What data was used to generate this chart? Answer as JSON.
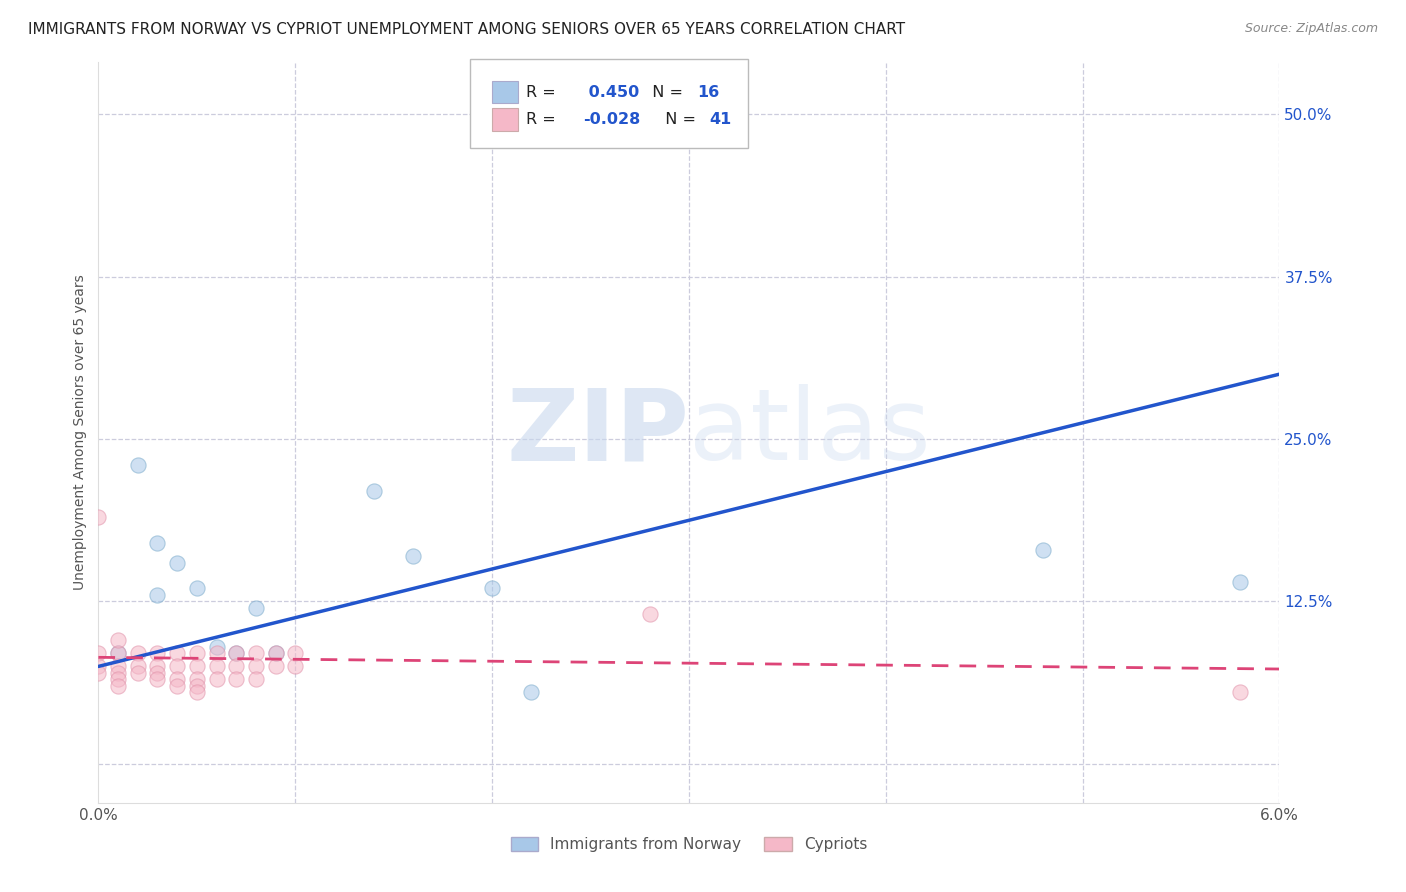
{
  "title": "IMMIGRANTS FROM NORWAY VS CYPRIOT UNEMPLOYMENT AMONG SENIORS OVER 65 YEARS CORRELATION CHART",
  "source": "Source: ZipAtlas.com",
  "ylabel": "Unemployment Among Seniors over 65 years",
  "xlim": [
    0.0,
    0.06
  ],
  "ylim": [
    -0.03,
    0.54
  ],
  "xticks": [
    0.0,
    0.01,
    0.02,
    0.03,
    0.04,
    0.05,
    0.06
  ],
  "xticklabels": [
    "0.0%",
    "",
    "",
    "",
    "",
    "",
    "6.0%"
  ],
  "yticks": [
    0.0,
    0.125,
    0.25,
    0.375,
    0.5
  ],
  "yticklabels": [
    "",
    "12.5%",
    "25.0%",
    "37.5%",
    "50.0%"
  ],
  "blue_color": "#a8c8e8",
  "blue_edge_color": "#7aaaca",
  "pink_color": "#f5b8c8",
  "pink_edge_color": "#e090a8",
  "blue_line_color": "#2255cc",
  "pink_line_color": "#dd4477",
  "R_blue": 0.45,
  "N_blue": 16,
  "R_pink": -0.028,
  "N_pink": 41,
  "legend_label_blue": "Immigrants from Norway",
  "legend_label_pink": "Cypriots",
  "watermark_zip": "ZIP",
  "watermark_atlas": "atlas",
  "blue_scatter_x": [
    0.001,
    0.002,
    0.003,
    0.003,
    0.004,
    0.005,
    0.006,
    0.007,
    0.008,
    0.009,
    0.014,
    0.016,
    0.02,
    0.022,
    0.048,
    0.058
  ],
  "blue_scatter_y": [
    0.085,
    0.23,
    0.17,
    0.13,
    0.155,
    0.135,
    0.09,
    0.085,
    0.12,
    0.085,
    0.21,
    0.16,
    0.135,
    0.055,
    0.165,
    0.14
  ],
  "pink_scatter_x": [
    0.0,
    0.0,
    0.0,
    0.0,
    0.001,
    0.001,
    0.001,
    0.001,
    0.001,
    0.001,
    0.002,
    0.002,
    0.002,
    0.003,
    0.003,
    0.003,
    0.003,
    0.004,
    0.004,
    0.004,
    0.004,
    0.005,
    0.005,
    0.005,
    0.005,
    0.005,
    0.006,
    0.006,
    0.006,
    0.007,
    0.007,
    0.007,
    0.008,
    0.008,
    0.008,
    0.009,
    0.009,
    0.01,
    0.01,
    0.028,
    0.058
  ],
  "pink_scatter_y": [
    0.085,
    0.075,
    0.07,
    0.19,
    0.085,
    0.075,
    0.07,
    0.065,
    0.06,
    0.095,
    0.085,
    0.075,
    0.07,
    0.085,
    0.075,
    0.07,
    0.065,
    0.085,
    0.075,
    0.065,
    0.06,
    0.085,
    0.075,
    0.065,
    0.06,
    0.055,
    0.085,
    0.075,
    0.065,
    0.085,
    0.075,
    0.065,
    0.085,
    0.075,
    0.065,
    0.085,
    0.075,
    0.085,
    0.075,
    0.115,
    0.055
  ],
  "blue_line_x": [
    0.0,
    0.06
  ],
  "blue_line_y": [
    0.075,
    0.3
  ],
  "pink_line_x": [
    0.0,
    0.06
  ],
  "pink_line_y": [
    0.082,
    0.073
  ],
  "title_fontsize": 11,
  "label_fontsize": 10,
  "tick_fontsize": 11,
  "legend_r_color": "#2255cc",
  "background_color": "#ffffff",
  "grid_color": "#ccccdd",
  "scatter_size": 120,
  "scatter_alpha": 0.55
}
